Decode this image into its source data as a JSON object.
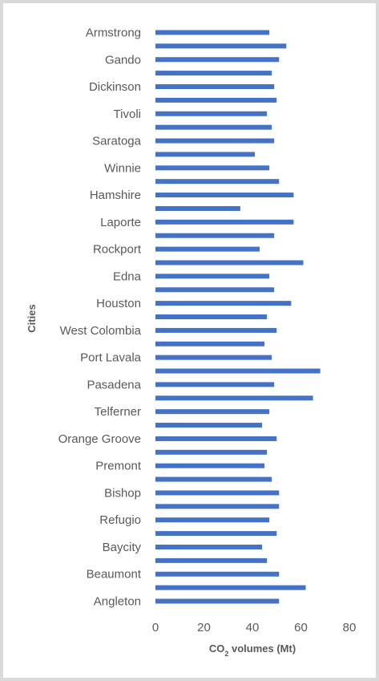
{
  "chart_data": {
    "type": "bar",
    "orientation": "horizontal",
    "categories": [
      "Armstrong",
      "",
      "Gando",
      "",
      "Dickinson",
      "",
      "Tivoli",
      "",
      "Saratoga",
      "",
      "Winnie",
      "",
      "Hamshire",
      "",
      "Laporte",
      "",
      "Rockport",
      "",
      "Edna",
      "",
      "Houston",
      "",
      "West Colombia",
      "",
      "Port Lavala",
      "",
      "Pasadena",
      "",
      "Telferner",
      "",
      "Orange Groove",
      "",
      "Premont",
      "",
      "Bishop",
      "",
      "Refugio",
      "",
      "Baycity",
      "",
      "Beaumont",
      "",
      "Angleton"
    ],
    "values": [
      47,
      54,
      51,
      48,
      49,
      50,
      46,
      48,
      49,
      41,
      47,
      51,
      57,
      35,
      57,
      49,
      43,
      61,
      47,
      49,
      56,
      46,
      50,
      45,
      48,
      68,
      49,
      65,
      47,
      44,
      50,
      46,
      45,
      48,
      51,
      51,
      47,
      50,
      44,
      46,
      51,
      62,
      51
    ],
    "xlabel_prefix": "CO",
    "xlabel_subscript": "2",
    "xlabel_suffix": " volumes  (Mt)",
    "ylabel": "Cities",
    "xlim": [
      0,
      80
    ],
    "xticks": [
      "0",
      "20",
      "40",
      "60",
      "80"
    ],
    "bar_color": "#4472c4",
    "grid": false,
    "legend": "none"
  }
}
